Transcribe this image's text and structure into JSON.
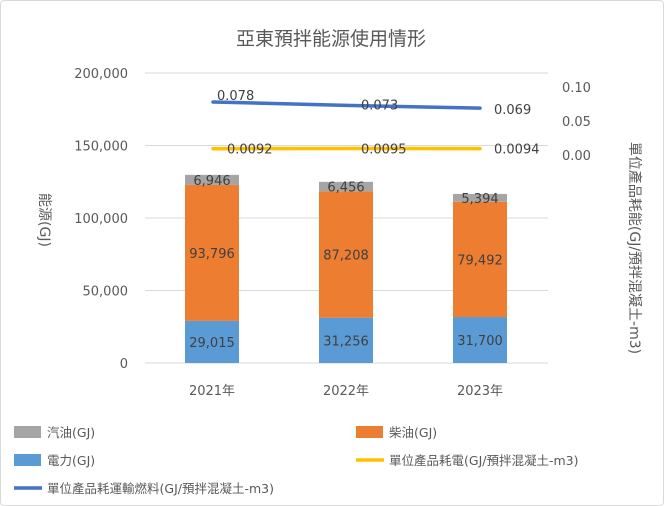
{
  "chart_data": {
    "type": "bar",
    "title": "亞東預拌能源使用情形",
    "categories": [
      "2021年",
      "2022年",
      "2023年"
    ],
    "y_left": {
      "label": "能源(GJ)",
      "ylim": [
        0,
        200000
      ],
      "ticks": [
        0,
        50000,
        100000,
        150000,
        200000
      ],
      "tick_labels": [
        "0",
        "50,000",
        "100,000",
        "150,000",
        "200,000"
      ]
    },
    "y_right": {
      "label": "單位產品耗能(GJ/預拌混凝土-m3)",
      "tick_labels": [
        "0.00",
        "0.05",
        "0.10"
      ],
      "ticks": [
        0.0,
        0.05,
        0.1
      ]
    },
    "stacked_series": [
      {
        "name": "電力(GJ)",
        "values": [
          29015,
          31256,
          31700
        ],
        "labels": [
          "29,015",
          "31,256",
          "31,700"
        ],
        "color": "#5b9bd5"
      },
      {
        "name": "柴油(GJ)",
        "values": [
          93796,
          87208,
          79492
        ],
        "labels": [
          "93,796",
          "87,208",
          "79,492"
        ],
        "color": "#ed7d31"
      },
      {
        "name": "汽油(GJ)",
        "values": [
          6946,
          6456,
          5394
        ],
        "labels": [
          "6,946",
          "6,456",
          "5,394"
        ],
        "color": "#a5a5a5"
      }
    ],
    "line_series": [
      {
        "name": "單位產品耗電(GJ/預拌混凝土-m3)",
        "values": [
          0.0092,
          0.0095,
          0.0094
        ],
        "labels": [
          "0.0092",
          "0.0095",
          "0.0094"
        ],
        "color": "#ffc000"
      },
      {
        "name": "單位產品耗運輸燃料(GJ/預拌混凝土-m3)",
        "values": [
          0.078,
          0.073,
          0.069
        ],
        "labels": [
          "0.078",
          "0.073",
          "0.069"
        ],
        "color": "#4472c4"
      }
    ],
    "legend": {
      "placement": "bottom",
      "items": [
        {
          "label": "汽油(GJ)",
          "color": "#a5a5a5",
          "kind": "box"
        },
        {
          "label": "柴油(GJ)",
          "color": "#ed7d31",
          "kind": "box"
        },
        {
          "label": "電力(GJ)",
          "color": "#5b9bd5",
          "kind": "box"
        },
        {
          "label": "單位產品耗電(GJ/預拌混凝土-m3)",
          "color": "#ffc000",
          "kind": "line"
        },
        {
          "label": "單位產品耗運輸燃料(GJ/預拌混凝土-m3)",
          "color": "#4472c4",
          "kind": "line"
        }
      ]
    },
    "grid": true
  }
}
